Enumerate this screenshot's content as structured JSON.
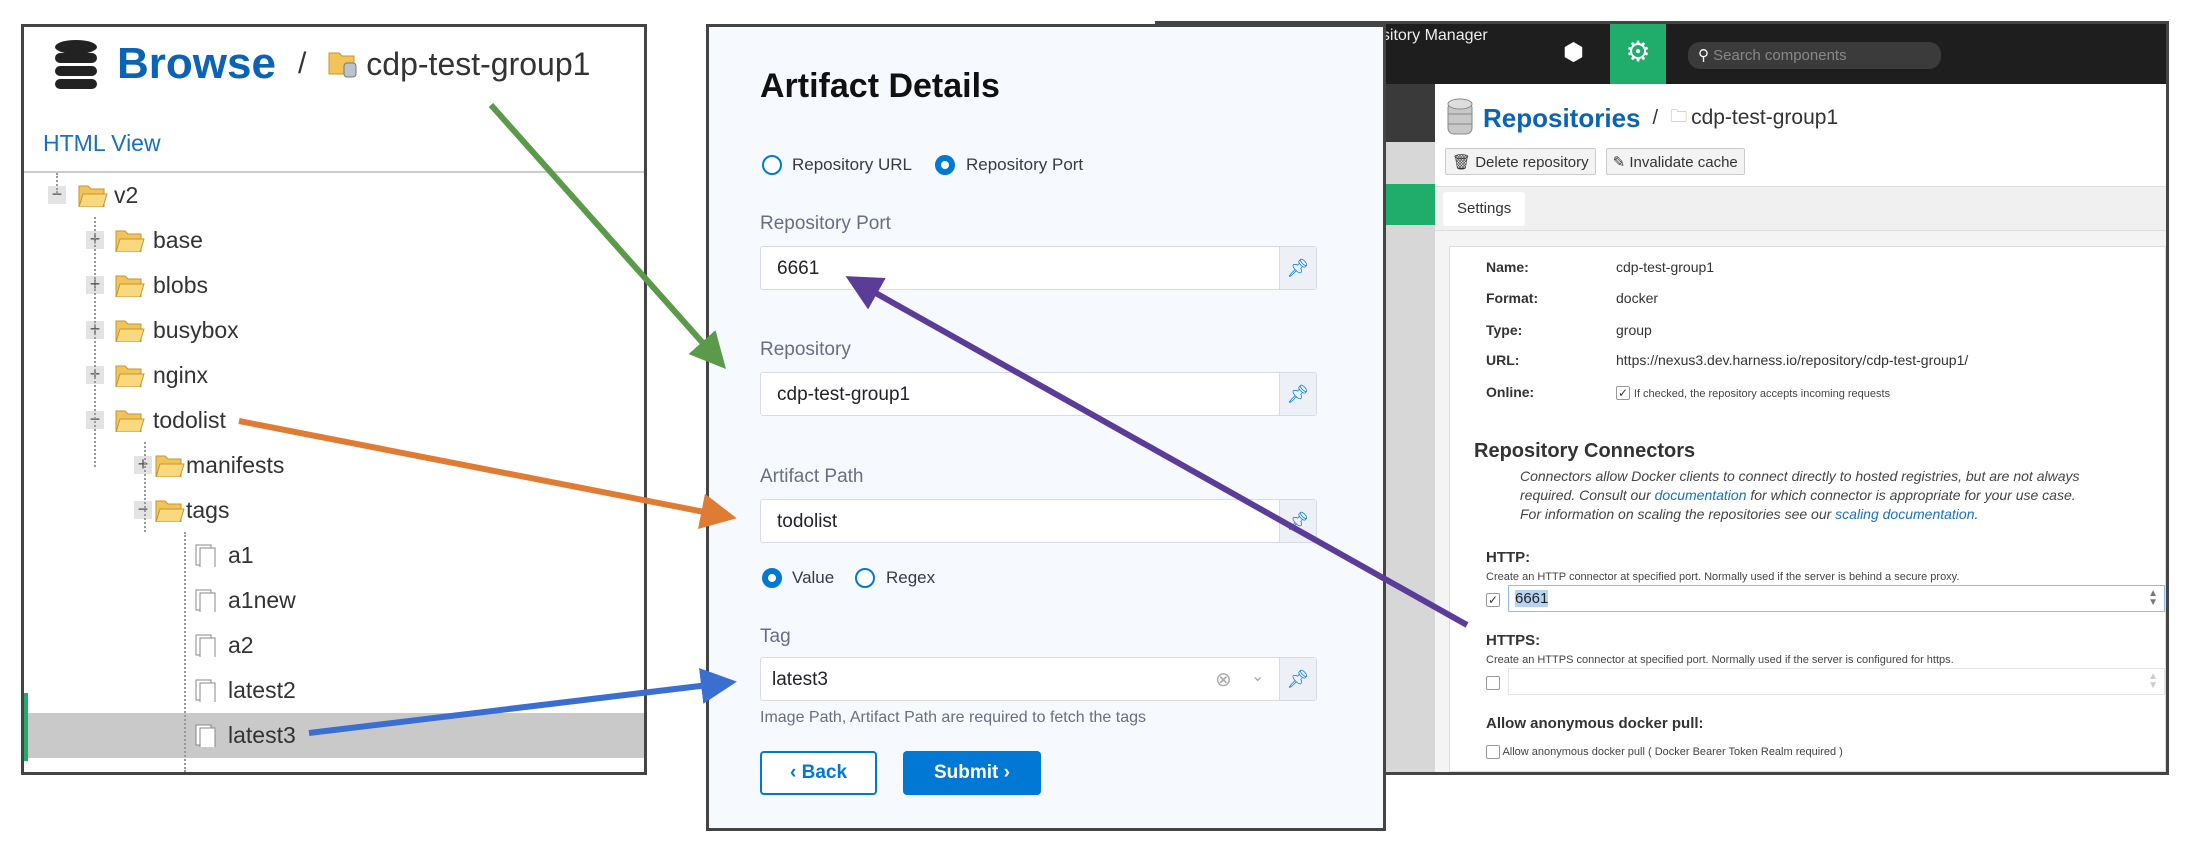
{
  "browse": {
    "title": "Browse",
    "separator": "/",
    "repo": "cdp-test-group1",
    "html_view": "HTML View",
    "tree": [
      {
        "label": "v2",
        "level": 0,
        "type": "folder",
        "expanded": true
      },
      {
        "label": "base",
        "level": 1,
        "type": "folder",
        "expanded": false
      },
      {
        "label": "blobs",
        "level": 1,
        "type": "folder",
        "expanded": false
      },
      {
        "label": "busybox",
        "level": 1,
        "type": "folder",
        "expanded": false
      },
      {
        "label": "nginx",
        "level": 1,
        "type": "folder",
        "expanded": false
      },
      {
        "label": "todolist",
        "level": 1,
        "type": "folder",
        "expanded": true
      },
      {
        "label": "manifests",
        "level": 2,
        "type": "folder",
        "expanded": false
      },
      {
        "label": "tags",
        "level": 2,
        "type": "folder",
        "expanded": true
      },
      {
        "label": "a1",
        "level": 3,
        "type": "file"
      },
      {
        "label": "a1new",
        "level": 3,
        "type": "file"
      },
      {
        "label": "a2",
        "level": 3,
        "type": "file"
      },
      {
        "label": "latest2",
        "level": 3,
        "type": "file"
      },
      {
        "label": "latest3",
        "level": 3,
        "type": "file",
        "selected": true
      }
    ]
  },
  "artifact": {
    "title": "Artifact Details",
    "source_options": [
      "Repository URL",
      "Repository Port"
    ],
    "source_selected": "Repository Port",
    "port_label": "Repository Port",
    "port_value": "6661",
    "repo_label": "Repository",
    "repo_value": "cdp-test-group1",
    "path_label": "Artifact Path",
    "path_value": "todolist",
    "tag_mode_options": [
      "Value",
      "Regex"
    ],
    "tag_mode_selected": "Value",
    "tag_label": "Tag",
    "tag_value": "latest3",
    "helper": "Image Path, Artifact Path are required to fetch the tags",
    "back": "Back",
    "submit": "Submit",
    "accent": "#0278d5"
  },
  "nexus": {
    "app_title": "ository Manager",
    "search_placeholder": "Search components",
    "title": "Repositories",
    "separator": "/",
    "repo": "cdp-test-group1",
    "delete": "Delete repository",
    "invalidate": "Invalidate cache",
    "tab": "Settings",
    "fields": [
      {
        "label": "Name:",
        "value": "cdp-test-group1"
      },
      {
        "label": "Format:",
        "value": "docker"
      },
      {
        "label": "Type:",
        "value": "group"
      },
      {
        "label": "URL:",
        "value": "https://nexus3.dev.harness.io/repository/cdp-test-group1/"
      }
    ],
    "online_label": "Online:",
    "online_text": "If checked, the repository accepts incoming requests",
    "online_checked": true,
    "connectors_title": "Repository Connectors",
    "connectors_p1": "Connectors allow Docker clients to connect directly to hosted registries, but are not always required. Consult our ",
    "connectors_link1": "documentation",
    "connectors_p2": " for which connector is appropriate for your use case. For information on scaling the repositories see our ",
    "connectors_link2": "scaling documentation",
    "connectors_p3": ".",
    "http_label": "HTTP:",
    "http_desc": "Create an HTTP connector at specified port. Normally used if the server is behind a secure proxy.",
    "http_checked": true,
    "http_port": "6661",
    "https_label": "HTTPS:",
    "https_desc": "Create an HTTPS connector at specified port. Normally used if the server is configured for https.",
    "https_checked": false,
    "https_port": "",
    "anon_label": "Allow anonymous docker pull:",
    "anon_text": "Allow anonymous docker pull ( Docker Bearer Token Realm required )",
    "anon_checked": false,
    "brand_green": "#20ac6b",
    "brand_blue": "#0a63b5"
  },
  "arrow_colors": {
    "repository": "#5a9a48",
    "path": "#e07b34",
    "tag": "#3a6fd1",
    "port": "#5b3d99"
  }
}
